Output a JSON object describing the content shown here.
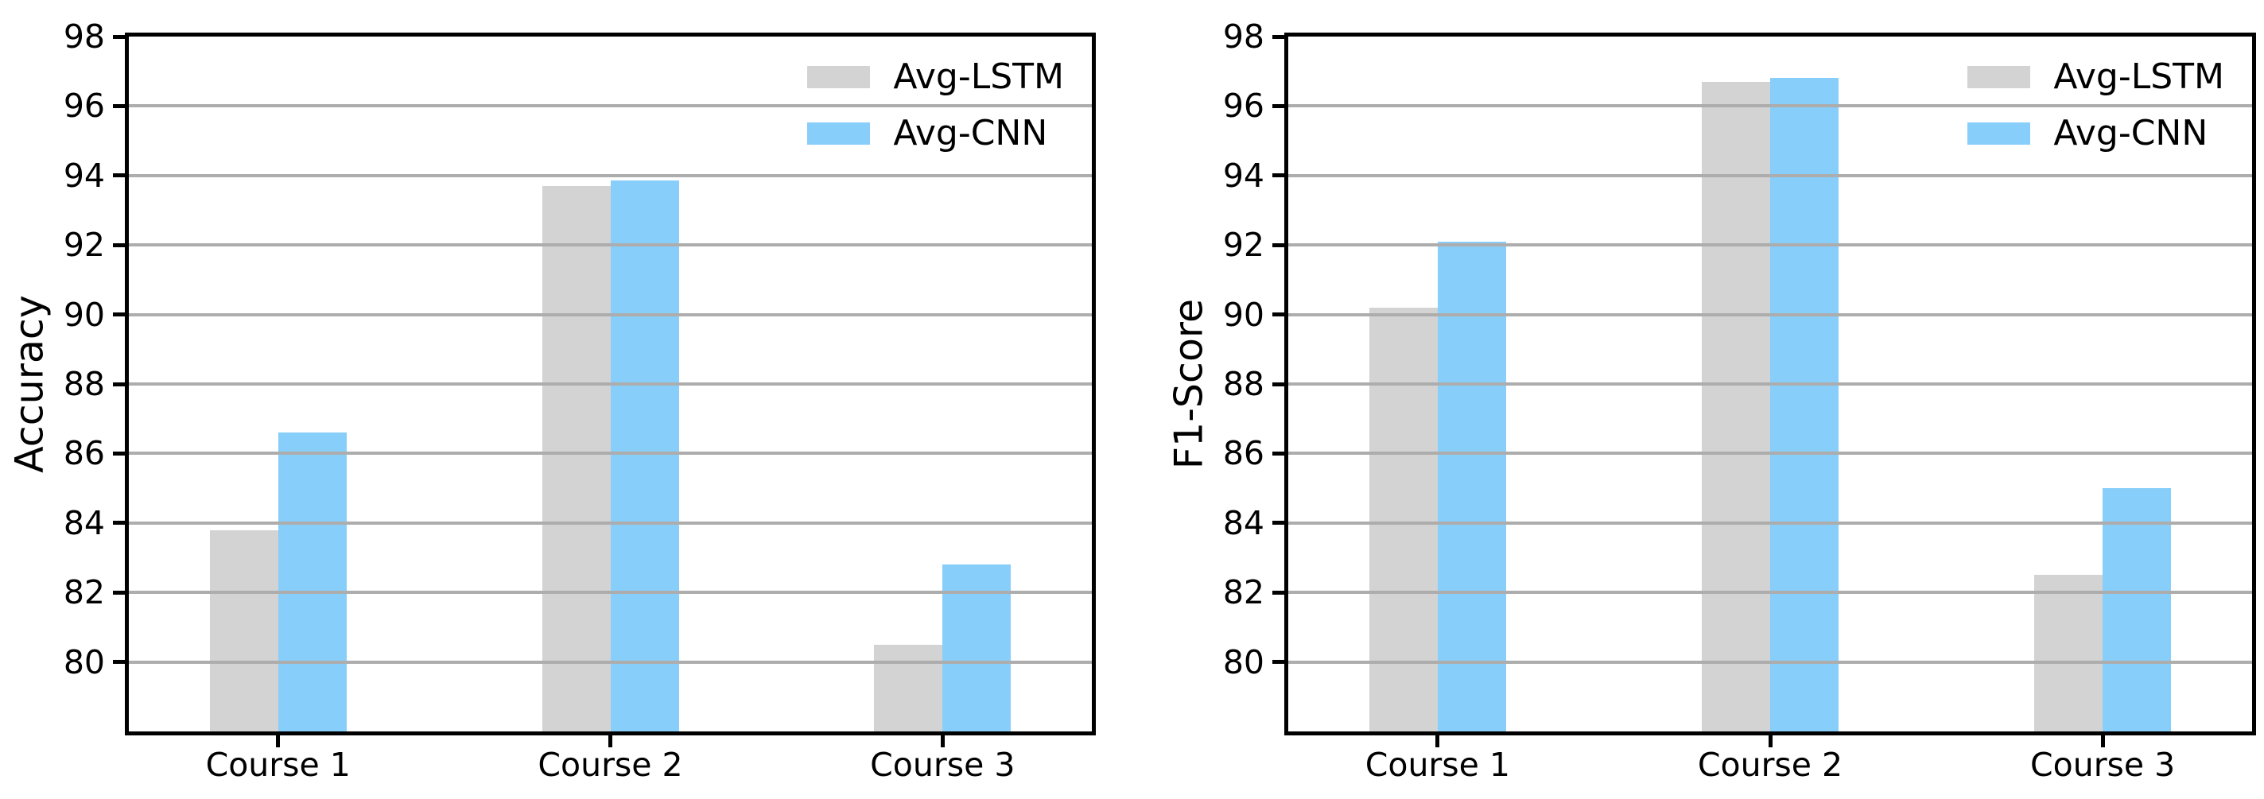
{
  "figure": {
    "background": "#ffffff"
  },
  "colors": {
    "bar_lstm": "#d3d3d3",
    "bar_cnn": "#87cefa",
    "grid": "#adadad",
    "axis": "#000000",
    "text": "#000000"
  },
  "legend": {
    "entries": [
      "Avg-LSTM",
      "Avg-CNN"
    ]
  },
  "chart_data": [
    {
      "type": "bar",
      "title": "",
      "xlabel": "",
      "ylabel": "Accuracy",
      "categories": [
        "Course 1",
        "Course 2",
        "Course 3"
      ],
      "series": [
        {
          "name": "Avg-LSTM",
          "color": "#d3d3d3",
          "values": [
            83.8,
            93.7,
            80.5
          ]
        },
        {
          "name": "Avg-CNN",
          "color": "#87cefa",
          "values": [
            86.6,
            93.85,
            82.8
          ]
        }
      ],
      "ylim": [
        78,
        98
      ],
      "yticks": [
        80,
        82,
        84,
        86,
        88,
        90,
        92,
        94,
        96,
        98
      ],
      "grid": "horizontal",
      "legend_position": "top-right"
    },
    {
      "type": "bar",
      "title": "",
      "xlabel": "",
      "ylabel": "F1-Score",
      "categories": [
        "Course 1",
        "Course 2",
        "Course 3"
      ],
      "series": [
        {
          "name": "Avg-LSTM",
          "color": "#d3d3d3",
          "values": [
            90.2,
            96.7,
            82.5
          ]
        },
        {
          "name": "Avg-CNN",
          "color": "#87cefa",
          "values": [
            92.1,
            96.8,
            85.0
          ]
        }
      ],
      "ylim": [
        78,
        98
      ],
      "yticks": [
        80,
        82,
        84,
        86,
        88,
        90,
        92,
        94,
        96,
        98
      ],
      "grid": "horizontal",
      "legend_position": "top-right"
    }
  ]
}
